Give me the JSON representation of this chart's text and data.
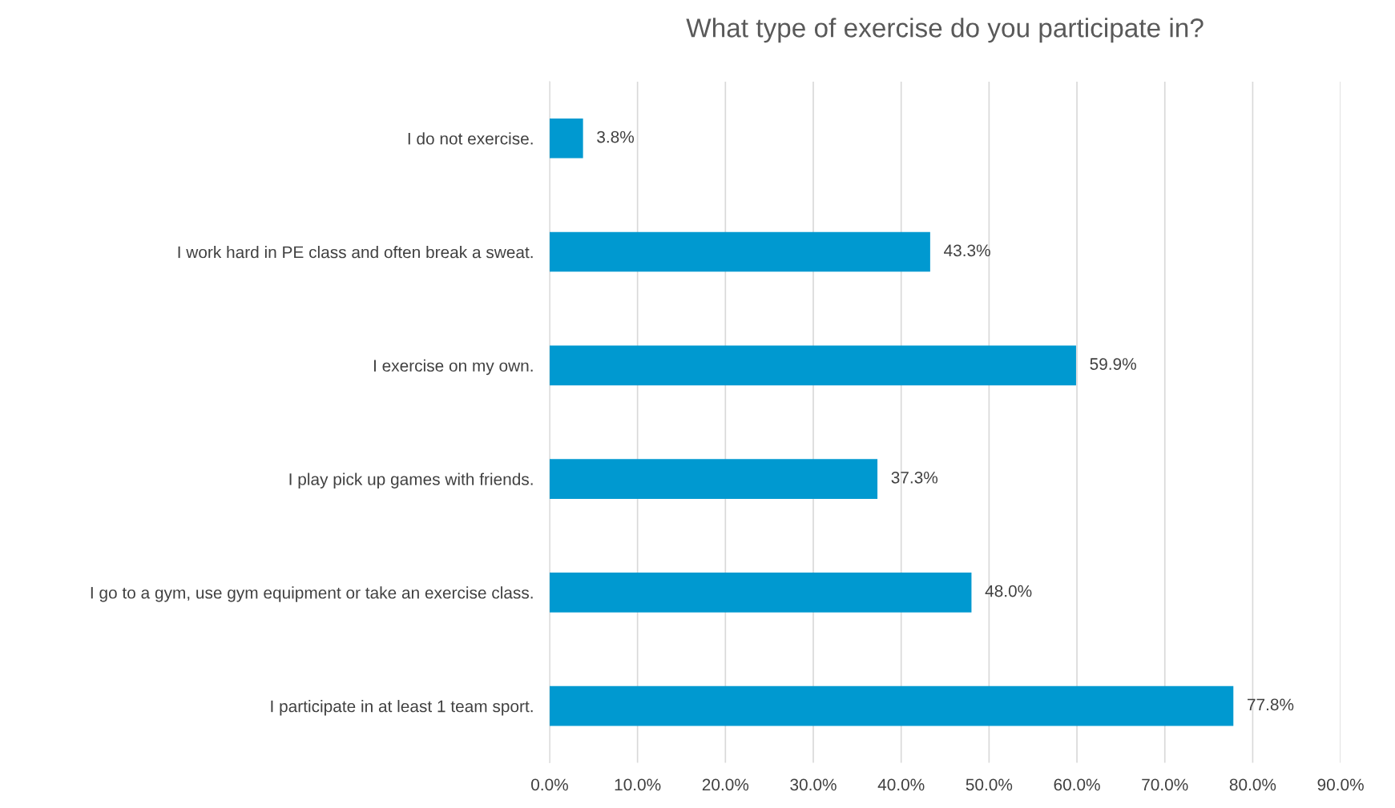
{
  "chart_data": {
    "type": "bar",
    "orientation": "horizontal",
    "title": "What type of exercise do you participate in?",
    "categories": [
      "I do not exercise.",
      "I work hard in PE class and often break a sweat.",
      "I exercise on my own.",
      "I play pick up games with friends.",
      "I go to a gym, use gym equipment or take an exercise class.",
      "I participate in at least 1 team sport."
    ],
    "values": [
      3.8,
      43.3,
      59.9,
      37.3,
      48.0,
      77.8
    ],
    "value_labels": [
      "3.8%",
      "43.3%",
      "59.9%",
      "37.3%",
      "48.0%",
      "77.8%"
    ],
    "color": "#0099d0",
    "xlim": [
      0,
      90
    ],
    "xticks": [
      {
        "value": 0,
        "label": "0.0%"
      },
      {
        "value": 10,
        "label": "10.0%"
      },
      {
        "value": 20,
        "label": "20.0%"
      },
      {
        "value": 30,
        "label": "30.0%"
      },
      {
        "value": 40,
        "label": "40.0%"
      },
      {
        "value": 50,
        "label": "50.0%"
      },
      {
        "value": 60,
        "label": "60.0%"
      },
      {
        "value": 70,
        "label": "70.0%"
      },
      {
        "value": 80,
        "label": "80.0%"
      },
      {
        "value": 90,
        "label": "90.0%"
      }
    ],
    "grid": "x",
    "legend": false
  }
}
